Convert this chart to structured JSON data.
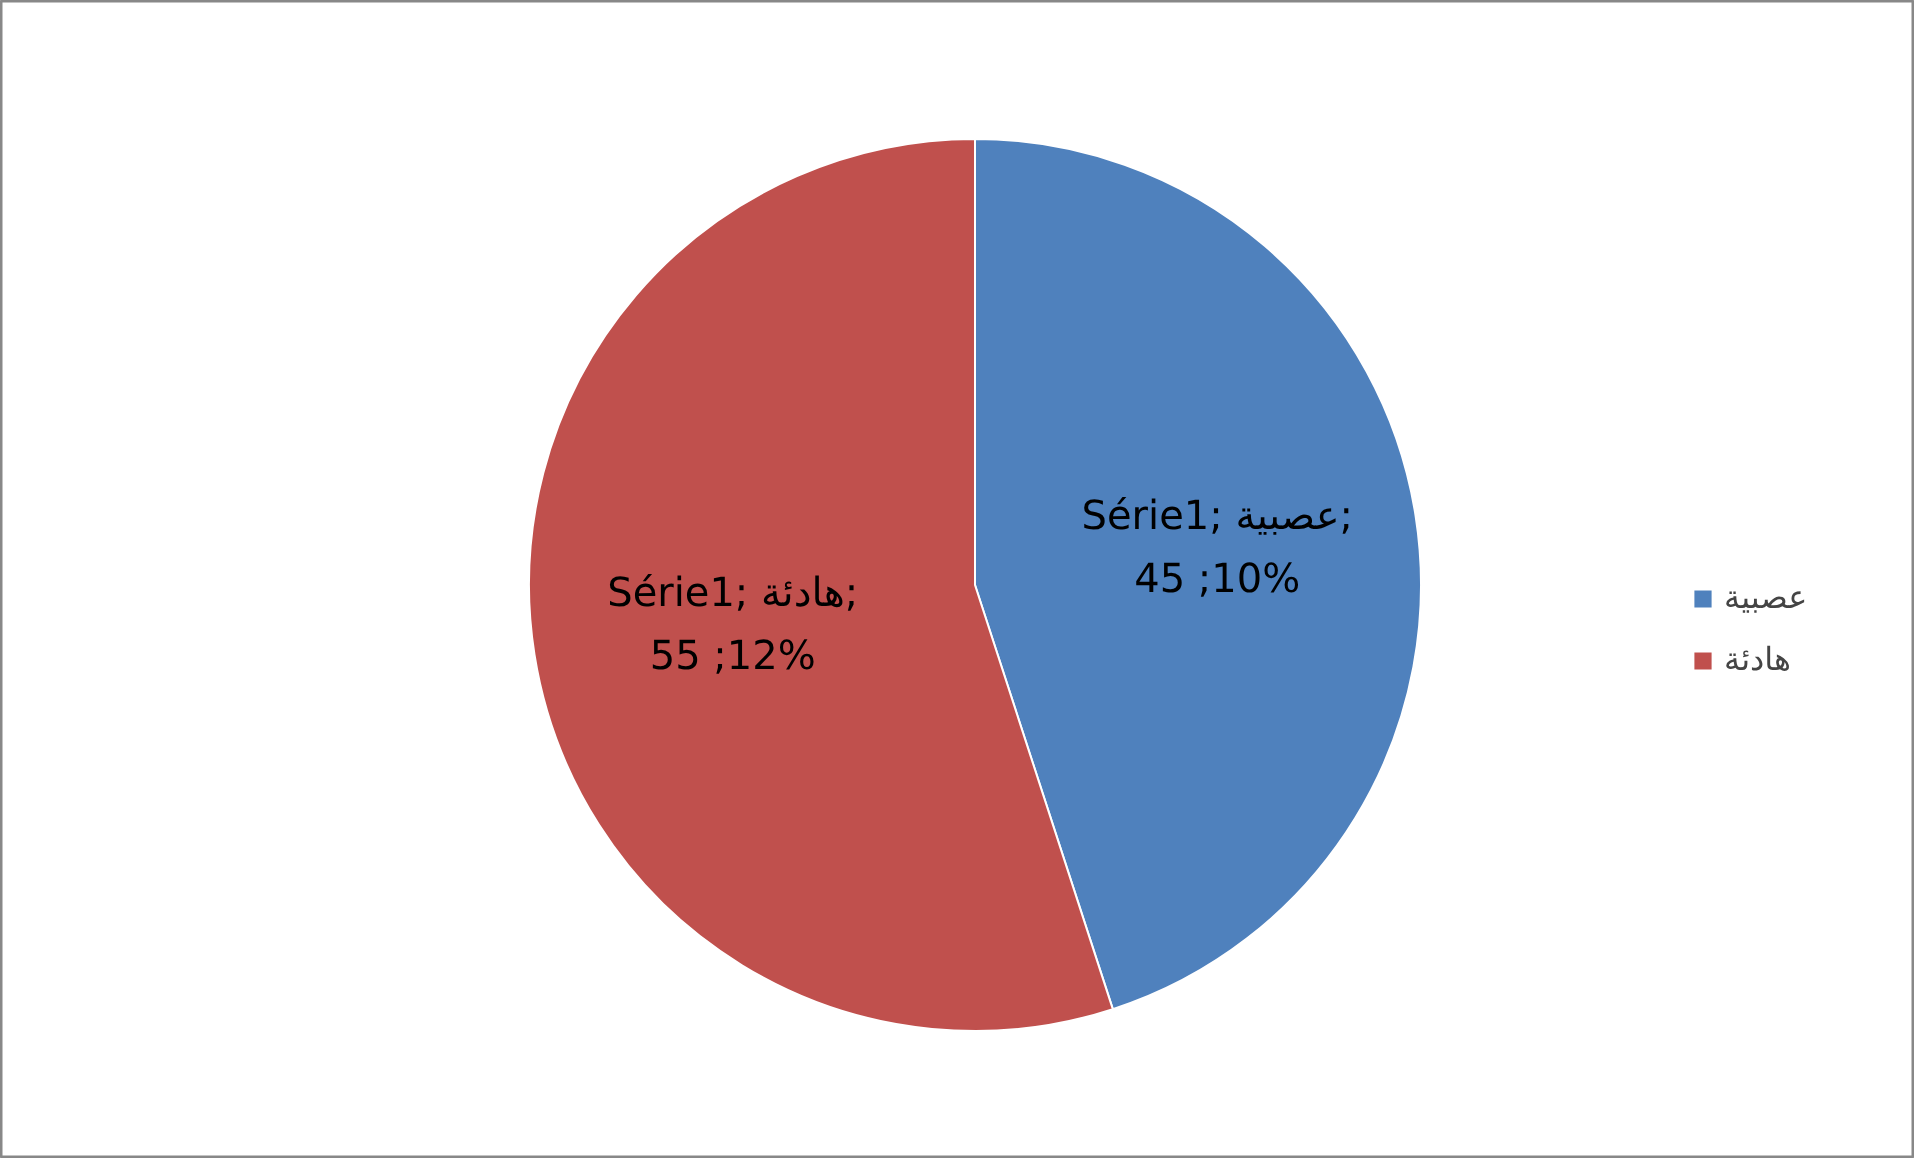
{
  "chart_data": {
    "type": "pie",
    "categories": [
      "عصبية",
      "هادئة"
    ],
    "values": [
      45,
      55
    ],
    "colors": [
      "#4f81bd",
      "#c0504d"
    ],
    "value_labels": [
      "Série1; عصبية;\n45 ;10%",
      "Série1; هادئة;\n55 ;12%"
    ],
    "legend": "right"
  }
}
